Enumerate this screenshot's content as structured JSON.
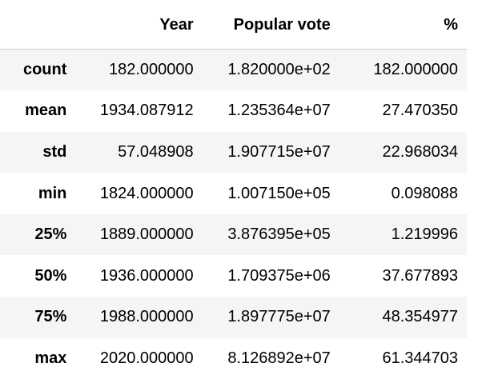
{
  "table": {
    "columns": [
      "",
      "Year",
      "Popular vote",
      "%"
    ],
    "rows": [
      {
        "index": "count",
        "year": "182.000000",
        "popular_vote": "1.820000e+02",
        "percent": "182.000000"
      },
      {
        "index": "mean",
        "year": "1934.087912",
        "popular_vote": "1.235364e+07",
        "percent": "27.470350"
      },
      {
        "index": "std",
        "year": "57.048908",
        "popular_vote": "1.907715e+07",
        "percent": "22.968034"
      },
      {
        "index": "min",
        "year": "1824.000000",
        "popular_vote": "1.007150e+05",
        "percent": "0.098088"
      },
      {
        "index": "25%",
        "year": "1889.000000",
        "popular_vote": "3.876395e+05",
        "percent": "1.219996"
      },
      {
        "index": "50%",
        "year": "1936.000000",
        "popular_vote": "1.709375e+06",
        "percent": "37.677893"
      },
      {
        "index": "75%",
        "year": "1988.000000",
        "popular_vote": "1.897775e+07",
        "percent": "48.354977"
      },
      {
        "index": "max",
        "year": "2020.000000",
        "popular_vote": "8.126892e+07",
        "percent": "61.344703"
      }
    ]
  }
}
